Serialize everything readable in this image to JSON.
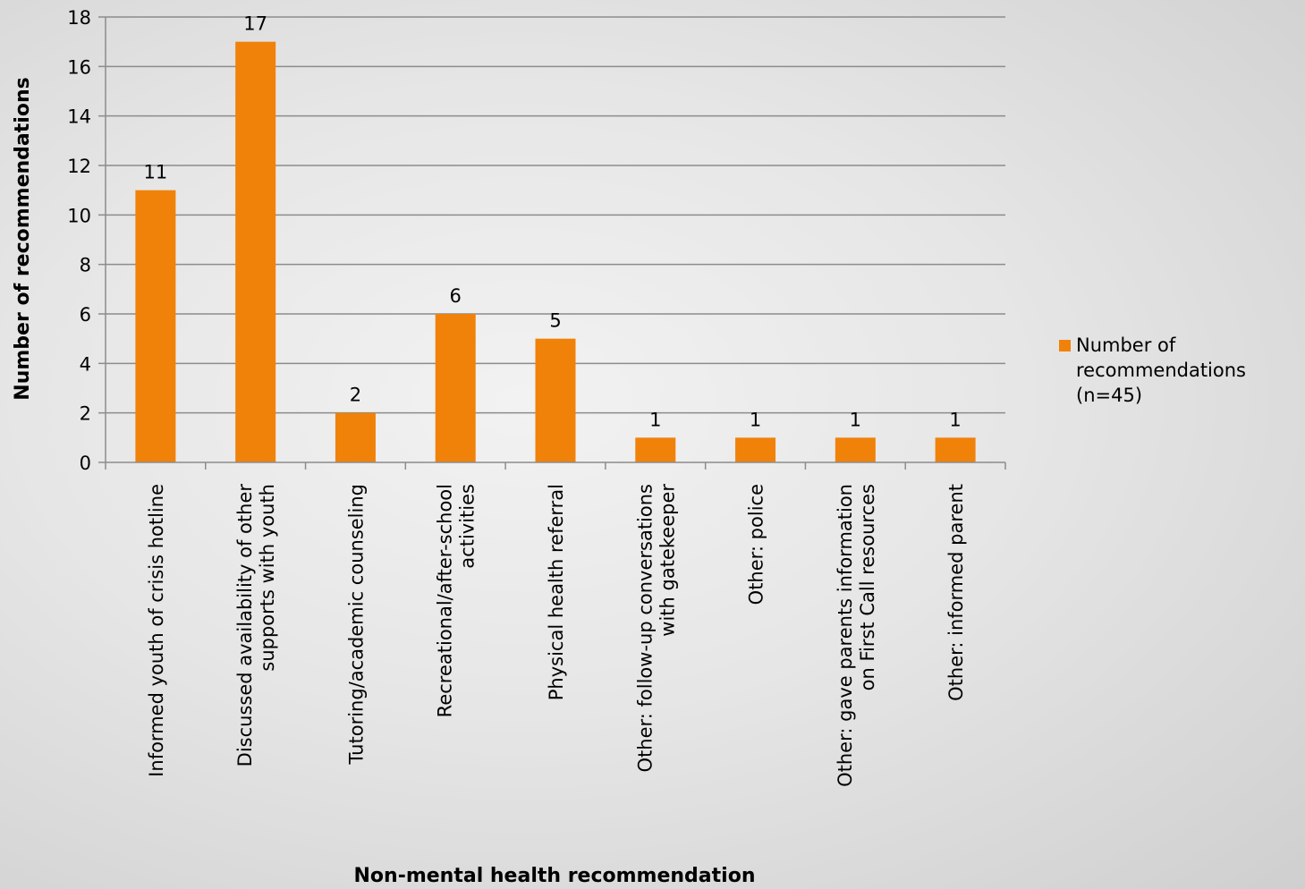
{
  "chart_data": {
    "type": "bar",
    "categories": [
      [
        "Informed youth of crisis hotline"
      ],
      [
        "Discussed availability of other",
        "supports with youth"
      ],
      [
        "Tutoring/academic counseling"
      ],
      [
        "Recreational/after-school",
        "activities"
      ],
      [
        "Physical health referral"
      ],
      [
        "Other: follow-up conversations",
        "with gatekeeper"
      ],
      [
        "Other: police"
      ],
      [
        "Other: gave parents information",
        "on First Call resources"
      ],
      [
        "Other: informed parent"
      ]
    ],
    "series": [
      {
        "name": [
          "Number of",
          "recommendations",
          "(n=45)"
        ],
        "values": [
          11,
          17,
          2,
          6,
          5,
          1,
          1,
          1,
          1
        ],
        "color": "#f0820a"
      }
    ],
    "data_labels": [
      "11",
      "17",
      "2",
      "6",
      "5",
      "1",
      "1",
      "1",
      "1"
    ],
    "ylabel": "Number of recommendations",
    "xlabel": "Non-mental health recommendation",
    "ylim": [
      0,
      18
    ],
    "yticks": [
      "0",
      "2",
      "4",
      "6",
      "8",
      "10",
      "12",
      "14",
      "16",
      "18"
    ],
    "grid": true,
    "legend_position": "right"
  }
}
